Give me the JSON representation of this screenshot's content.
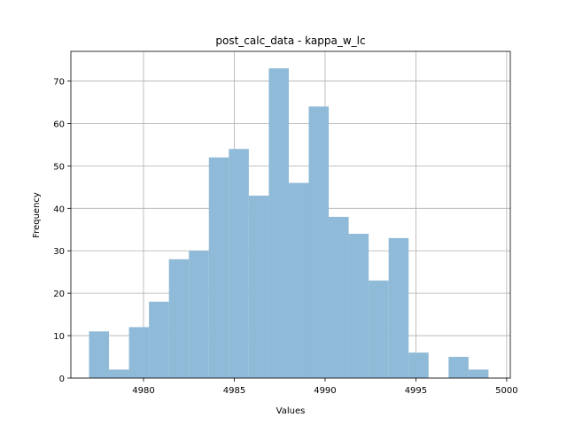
{
  "chart_data": {
    "type": "bar",
    "subtype": "histogram",
    "title": "post_calc_data - kappa_w_lc",
    "xlabel": "Values",
    "ylabel": "Frequency",
    "xlim": [
      4976.0,
      5000.2
    ],
    "ylim": [
      0,
      77
    ],
    "xticks": [
      4980,
      4985,
      4990,
      4995,
      5000
    ],
    "yticks": [
      0,
      10,
      20,
      30,
      40,
      50,
      60,
      70
    ],
    "grid": true,
    "bar_color": "#8fbad8",
    "bins": [
      {
        "x0": 4977.0,
        "x1": 4978.1,
        "count": 11
      },
      {
        "x0": 4978.1,
        "x1": 4979.2,
        "count": 2
      },
      {
        "x0": 4979.2,
        "x1": 4980.3,
        "count": 12
      },
      {
        "x0": 4980.3,
        "x1": 4981.4,
        "count": 18
      },
      {
        "x0": 4981.4,
        "x1": 4982.5,
        "count": 28
      },
      {
        "x0": 4982.5,
        "x1": 4983.6,
        "count": 30
      },
      {
        "x0": 4983.6,
        "x1": 4984.7,
        "count": 52
      },
      {
        "x0": 4984.7,
        "x1": 4985.8,
        "count": 54
      },
      {
        "x0": 4985.8,
        "x1": 4986.9,
        "count": 43
      },
      {
        "x0": 4986.9,
        "x1": 4988.0,
        "count": 73
      },
      {
        "x0": 4988.0,
        "x1": 4989.1,
        "count": 46
      },
      {
        "x0": 4989.1,
        "x1": 4990.2,
        "count": 64
      },
      {
        "x0": 4990.2,
        "x1": 4991.3,
        "count": 38
      },
      {
        "x0": 4991.3,
        "x1": 4992.4,
        "count": 34
      },
      {
        "x0": 4992.4,
        "x1": 4993.5,
        "count": 23
      },
      {
        "x0": 4993.5,
        "x1": 4994.6,
        "count": 33
      },
      {
        "x0": 4994.6,
        "x1": 4995.7,
        "count": 6
      },
      {
        "x0": 4995.7,
        "x1": 4996.8,
        "count": 0
      },
      {
        "x0": 4996.8,
        "x1": 4997.9,
        "count": 5
      },
      {
        "x0": 4997.9,
        "x1": 4999.0,
        "count": 2
      }
    ]
  }
}
